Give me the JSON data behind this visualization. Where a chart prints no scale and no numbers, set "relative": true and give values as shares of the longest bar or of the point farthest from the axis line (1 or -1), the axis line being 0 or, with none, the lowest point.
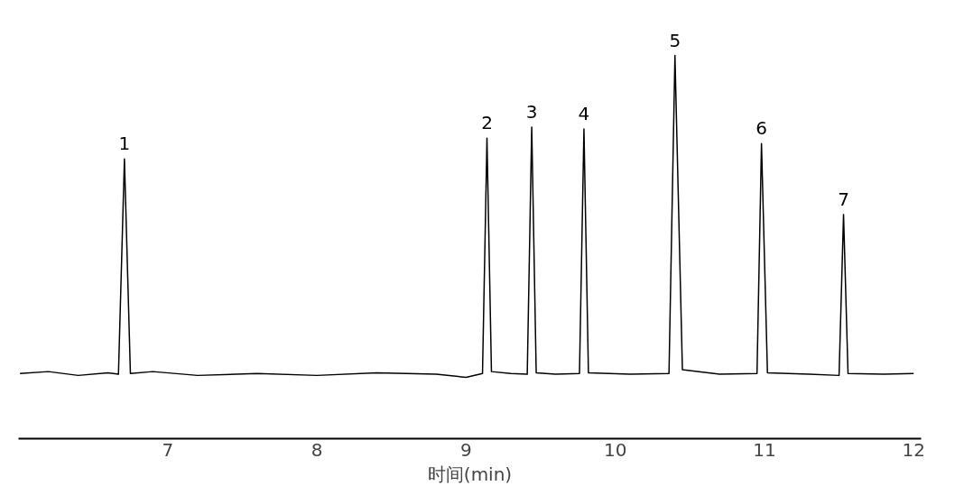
{
  "chart_data": {
    "type": "line",
    "relative": true,
    "xlabel": "时间(min)",
    "xlim": [
      6.0,
      12.05
    ],
    "xticks": [
      7,
      8,
      9,
      10,
      11,
      12
    ],
    "grid": false,
    "x": [
      6.01,
      6.2,
      6.4,
      6.6,
      6.67,
      6.71,
      6.75,
      6.9,
      7.2,
      7.6,
      8.0,
      8.4,
      8.8,
      9.0,
      9.11,
      9.14,
      9.17,
      9.3,
      9.41,
      9.44,
      9.47,
      9.6,
      9.76,
      9.79,
      9.82,
      10.1,
      10.36,
      10.4,
      10.45,
      10.7,
      10.95,
      10.98,
      11.02,
      11.3,
      11.5,
      11.53,
      11.56,
      11.8,
      12.0
    ],
    "series": [
      {
        "color": "#000000",
        "values": [
          0.17,
          0.175,
          0.165,
          0.172,
          0.168,
          0.73,
          0.17,
          0.175,
          0.165,
          0.17,
          0.165,
          0.172,
          0.168,
          0.16,
          0.17,
          0.784,
          0.175,
          0.17,
          0.168,
          0.813,
          0.172,
          0.168,
          0.17,
          0.808,
          0.172,
          0.168,
          0.17,
          1.0,
          0.18,
          0.168,
          0.17,
          0.77,
          0.172,
          0.168,
          0.165,
          0.585,
          0.17,
          0.168,
          0.17
        ]
      }
    ],
    "annotations": [
      {
        "text": "1",
        "x": 6.71,
        "y": 0.73
      },
      {
        "text": "2",
        "x": 9.14,
        "y": 0.784
      },
      {
        "text": "3",
        "x": 9.44,
        "y": 0.813
      },
      {
        "text": "4",
        "x": 9.79,
        "y": 0.808
      },
      {
        "text": "5",
        "x": 10.4,
        "y": 1.0
      },
      {
        "text": "6",
        "x": 10.98,
        "y": 0.77
      },
      {
        "text": "7",
        "x": 11.53,
        "y": 0.585
      }
    ]
  }
}
